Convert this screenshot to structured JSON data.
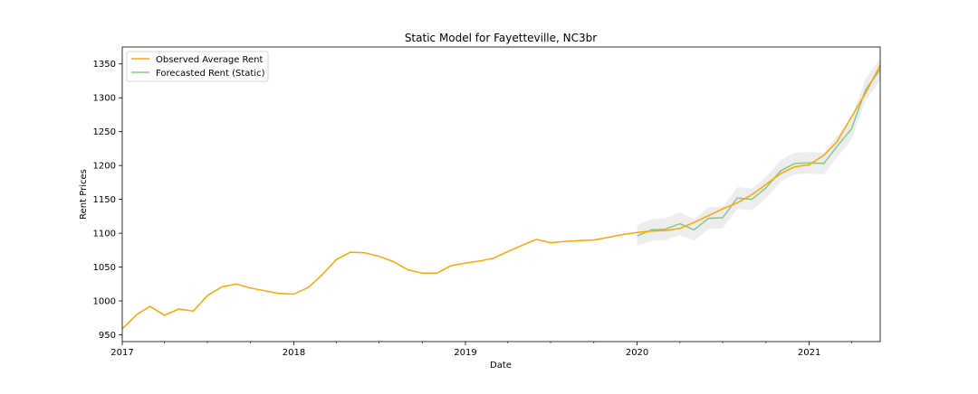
{
  "chart_data": {
    "type": "line",
    "title": "Static Model for Fayetteville, NC3br",
    "xlabel": "Date",
    "ylabel": "Rent Prices",
    "xlim": [
      "2017-01-01",
      "2021-06-01"
    ],
    "ylim": [
      940,
      1375
    ],
    "x_ticks": [
      {
        "date": "2017-01-01",
        "label": "2017"
      },
      {
        "date": "2018-01-01",
        "label": "2018"
      },
      {
        "date": "2019-01-01",
        "label": "2019"
      },
      {
        "date": "2020-01-01",
        "label": "2020"
      },
      {
        "date": "2021-01-01",
        "label": "2021"
      }
    ],
    "y_ticks": [
      950,
      1000,
      1050,
      1100,
      1150,
      1200,
      1250,
      1300,
      1350
    ],
    "grid": false,
    "legend_position": "top-left",
    "series": [
      {
        "name": "Observed Average Rent",
        "color": "#ffa500",
        "x": [
          "2017-01-01",
          "2017-02-01",
          "2017-03-01",
          "2017-04-01",
          "2017-05-01",
          "2017-06-01",
          "2017-07-01",
          "2017-08-01",
          "2017-09-01",
          "2017-10-01",
          "2017-11-01",
          "2017-12-01",
          "2018-01-01",
          "2018-02-01",
          "2018-03-01",
          "2018-04-01",
          "2018-05-01",
          "2018-06-01",
          "2018-07-01",
          "2018-08-01",
          "2018-09-01",
          "2018-10-01",
          "2018-11-01",
          "2018-12-01",
          "2019-01-01",
          "2019-02-01",
          "2019-03-01",
          "2019-04-01",
          "2019-05-01",
          "2019-06-01",
          "2019-07-01",
          "2019-08-01",
          "2019-09-01",
          "2019-10-01",
          "2019-11-01",
          "2019-12-01",
          "2020-01-01",
          "2020-02-01",
          "2020-03-01",
          "2020-04-01",
          "2020-05-01",
          "2020-06-01",
          "2020-07-01",
          "2020-08-01",
          "2020-09-01",
          "2020-10-01",
          "2020-11-01",
          "2020-12-01",
          "2021-01-01",
          "2021-02-01",
          "2021-03-01",
          "2021-04-01",
          "2021-05-01",
          "2021-06-01"
        ],
        "y": [
          959,
          980,
          992,
          979,
          988,
          985,
          1008,
          1021,
          1025,
          1019,
          1015,
          1011,
          1010,
          1020,
          1038,
          1061,
          1072,
          1071,
          1066,
          1058,
          1046,
          1041,
          1041,
          1052,
          1056,
          1059,
          1063,
          1073,
          1082,
          1091,
          1086,
          1088,
          1089,
          1090,
          1094,
          1098,
          1101,
          1103,
          1104,
          1107,
          1116,
          1126,
          1136,
          1145,
          1157,
          1172,
          1188,
          1198,
          1201,
          1215,
          1235,
          1272,
          1307,
          1348
        ]
      },
      {
        "name": "Forecasted Rent (Static)",
        "color": "#66bb66",
        "x": [
          "2020-01-01",
          "2020-02-01",
          "2020-03-01",
          "2020-04-01",
          "2020-05-01",
          "2020-06-01",
          "2020-07-01",
          "2020-08-01",
          "2020-09-01",
          "2020-10-01",
          "2020-11-01",
          "2020-12-01",
          "2021-01-01",
          "2021-02-01",
          "2021-03-01",
          "2021-04-01",
          "2021-05-01",
          "2021-06-01"
        ],
        "y": [
          1096,
          1105,
          1106,
          1114,
          1105,
          1122,
          1123,
          1152,
          1150,
          1167,
          1192,
          1203,
          1204,
          1203,
          1228,
          1254,
          1312,
          1342
        ],
        "ci_lower": [
          1081,
          1089,
          1090,
          1097,
          1089,
          1106,
          1107,
          1136,
          1134,
          1151,
          1176,
          1187,
          1188,
          1187,
          1212,
          1238,
          1296,
          1326
        ],
        "ci_upper": [
          1112,
          1121,
          1122,
          1131,
          1121,
          1138,
          1139,
          1168,
          1166,
          1183,
          1208,
          1219,
          1220,
          1219,
          1244,
          1270,
          1328,
          1358
        ]
      }
    ]
  }
}
